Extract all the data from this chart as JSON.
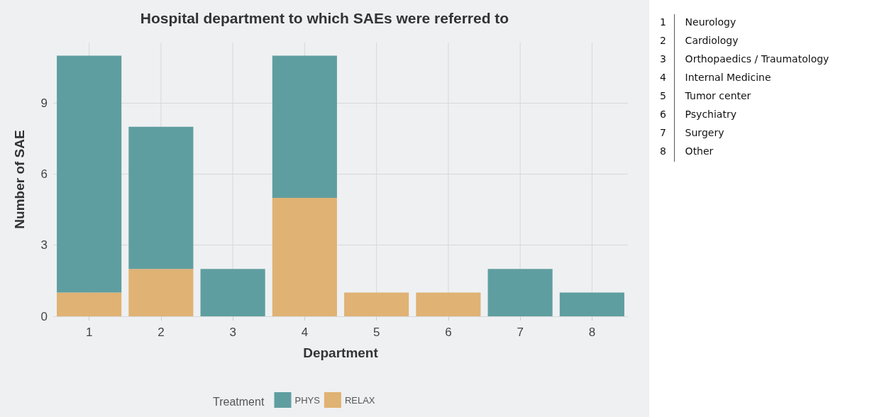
{
  "chart_data": [
    {
      "type": "bar",
      "title": "Hospital department to which SAEs were referred to",
      "xlabel": "Department",
      "ylabel": "Number of SAE",
      "legend_title": "Treatment",
      "categories": [
        "1",
        "2",
        "3",
        "4",
        "5",
        "6",
        "7",
        "8"
      ],
      "series": [
        {
          "name": "RELAX",
          "color": "#e0b274",
          "values": [
            1,
            2,
            0,
            5,
            1,
            1,
            0,
            0
          ]
        },
        {
          "name": "PHYS",
          "color": "#5f9ea0",
          "values": [
            10,
            6,
            2,
            6,
            0,
            0,
            2,
            1
          ]
        }
      ],
      "stacked": true,
      "ylim": [
        0,
        11.55
      ],
      "yticks": [
        0,
        3,
        6,
        9
      ],
      "grid": true,
      "legend": "bottom"
    },
    {
      "type": "other",
      "annotations": [
        "1 Neurology",
        "2 Cardiology",
        "3 Orthopaedics / Traumatology",
        "4 Internal Medicine",
        "5 Tumor center",
        "6 Psychiatry",
        "7 Surgery",
        "8 Other"
      ]
    }
  ]
}
